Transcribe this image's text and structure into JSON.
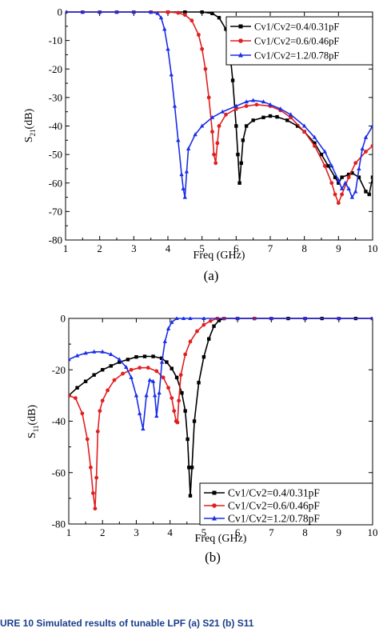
{
  "caption": "URE 10  Simulated results of tunable LPF (a) S21 (b) S11",
  "chart_data": [
    {
      "type": "line",
      "panel_label": "(a)",
      "xlabel": "Freq (GHz)",
      "ylabel_base": "S",
      "ylabel_sub": "21",
      "ylabel_unit": "(dB)",
      "xlim": [
        1,
        10
      ],
      "ylim": [
        -80,
        0
      ],
      "xticks": [
        1,
        2,
        3,
        4,
        5,
        6,
        7,
        8,
        9,
        10
      ],
      "yticks": [
        0,
        -10,
        -20,
        -30,
        -40,
        -50,
        -60,
        -70,
        -80
      ],
      "legend_position": "top-right",
      "series": [
        {
          "name": "Cv1/Cv2=0.4/0.31pF",
          "color": "#000000",
          "marker": "square",
          "x": [
            1,
            1.5,
            2,
            2.5,
            3,
            3.5,
            4,
            4.5,
            5,
            5.3,
            5.5,
            5.7,
            5.8,
            5.9,
            6,
            6.05,
            6.1,
            6.15,
            6.2,
            6.3,
            6.5,
            6.8,
            7,
            7.2,
            7.5,
            7.8,
            8,
            8.3,
            8.5,
            8.7,
            8.9,
            9,
            9.1,
            9.3,
            9.4,
            9.6,
            9.8,
            9.9,
            10
          ],
          "y": [
            0,
            0,
            0,
            0,
            0,
            0,
            0,
            0,
            0,
            -0.5,
            -2,
            -6,
            -12,
            -24,
            -40,
            -50,
            -60,
            -53,
            -45,
            -40,
            -38,
            -37,
            -36.5,
            -36.8,
            -38,
            -40,
            -42,
            -46,
            -50,
            -54,
            -58,
            -60,
            -58,
            -57,
            -56.5,
            -58,
            -63,
            -64,
            -58
          ]
        },
        {
          "name": "Cv1/Cv2=0.6/0.46pF",
          "color": "#e02020",
          "marker": "circle",
          "x": [
            1,
            1.5,
            2,
            2.5,
            3,
            3.5,
            4,
            4.3,
            4.5,
            4.7,
            4.9,
            5,
            5.1,
            5.2,
            5.3,
            5.35,
            5.4,
            5.45,
            5.5,
            5.7,
            6,
            6.3,
            6.6,
            7,
            7.3,
            7.6,
            8,
            8.3,
            8.6,
            8.8,
            8.9,
            9,
            9.1,
            9.3,
            9.5,
            9.8,
            10
          ],
          "y": [
            0,
            0,
            0,
            0,
            0,
            0,
            0,
            -0.3,
            -1,
            -3,
            -8,
            -13,
            -20,
            -30,
            -42,
            -50,
            -53,
            -46,
            -40,
            -36,
            -34,
            -33,
            -32.5,
            -33,
            -34.5,
            -37,
            -42,
            -47,
            -54,
            -60,
            -64,
            -67,
            -64,
            -58,
            -53,
            -49,
            -47
          ]
        },
        {
          "name": "Cv1/Cv2=1.2/0.78pF",
          "color": "#1a2ee6",
          "marker": "triangle",
          "x": [
            1,
            1.5,
            2,
            2.5,
            3,
            3.5,
            3.7,
            3.8,
            3.9,
            4,
            4.1,
            4.2,
            4.3,
            4.4,
            4.45,
            4.5,
            4.55,
            4.6,
            4.8,
            5,
            5.3,
            5.6,
            6,
            6.3,
            6.5,
            6.8,
            7,
            7.3,
            7.6,
            8,
            8.3,
            8.6,
            8.8,
            9,
            9.1,
            9.2,
            9.3,
            9.4,
            9.5,
            9.6,
            9.7,
            9.8,
            10
          ],
          "y": [
            0,
            0,
            0,
            0,
            0,
            0,
            -0.5,
            -2,
            -6,
            -13,
            -22,
            -33,
            -45,
            -57,
            -62,
            -65,
            -56,
            -48,
            -43,
            -40,
            -37,
            -35,
            -33,
            -31.5,
            -31,
            -31.5,
            -32.5,
            -34,
            -36,
            -40,
            -44,
            -49,
            -54,
            -59,
            -62,
            -60,
            -62,
            -65,
            -63,
            -55,
            -48,
            -44,
            -40
          ]
        }
      ]
    },
    {
      "type": "line",
      "panel_label": "(b)",
      "xlabel": "Freq (GHz)",
      "ylabel_base": "S",
      "ylabel_sub": "11",
      "ylabel_unit": "(dB)",
      "xlim": [
        1,
        10
      ],
      "ylim": [
        -80,
        0
      ],
      "xticks": [
        1,
        2,
        3,
        4,
        5,
        6,
        7,
        8,
        9,
        10
      ],
      "yticks": [
        0,
        -20,
        -40,
        -60,
        -80
      ],
      "legend_position": "bottom-right",
      "series": [
        {
          "name": "Cv1/Cv2=0.4/0.31pF",
          "color": "#000000",
          "marker": "square",
          "x": [
            1,
            1.25,
            1.5,
            1.75,
            2,
            2.25,
            2.5,
            2.75,
            3,
            3.25,
            3.5,
            3.75,
            3.9,
            4.05,
            4.2,
            4.35,
            4.45,
            4.52,
            4.56,
            4.6,
            4.65,
            4.72,
            4.85,
            5,
            5.15,
            5.3,
            5.45,
            5.6,
            6,
            6.5,
            7,
            7.5,
            8,
            8.5,
            9,
            9.5,
            10
          ],
          "y": [
            -30,
            -27,
            -24.5,
            -22,
            -20,
            -18.5,
            -17,
            -16,
            -15,
            -14.8,
            -14.8,
            -15.5,
            -17,
            -19.5,
            -23,
            -29,
            -36,
            -47,
            -58,
            -69,
            -58,
            -40,
            -25,
            -15,
            -8,
            -3,
            -0.8,
            0,
            0,
            0,
            0,
            0,
            0,
            0,
            0,
            0,
            0
          ]
        },
        {
          "name": "Cv1/Cv2=0.6/0.46pF",
          "color": "#e02020",
          "marker": "circle",
          "x": [
            1,
            1.2,
            1.4,
            1.55,
            1.65,
            1.72,
            1.78,
            1.82,
            1.86,
            1.92,
            2,
            2.15,
            2.35,
            2.6,
            2.85,
            3.1,
            3.35,
            3.6,
            3.8,
            3.95,
            4.05,
            4.12,
            4.18,
            4.22,
            4.26,
            4.32,
            4.45,
            4.6,
            4.8,
            5,
            5.2,
            5.4,
            5.6,
            6,
            6.5,
            7,
            8,
            9,
            10
          ],
          "y": [
            -30,
            -31,
            -37,
            -47,
            -58,
            -68,
            -74,
            -62,
            -44,
            -36,
            -32,
            -28,
            -24,
            -21.5,
            -20,
            -19.2,
            -19.2,
            -20.5,
            -23,
            -27,
            -31,
            -36,
            -40,
            -40.5,
            -32,
            -22,
            -14,
            -9,
            -5,
            -2.5,
            -1,
            0,
            0,
            0,
            0,
            0,
            0,
            0,
            0
          ]
        },
        {
          "name": "Cv1/Cv2=1.2/0.78pF",
          "color": "#1a2ee6",
          "marker": "triangle",
          "x": [
            1,
            1.25,
            1.5,
            1.75,
            2,
            2.25,
            2.5,
            2.7,
            2.85,
            3,
            3.1,
            3.2,
            3.3,
            3.4,
            3.5,
            3.55,
            3.6,
            3.68,
            3.76,
            3.85,
            3.95,
            4.05,
            4.2,
            4.4,
            4.6,
            5,
            6,
            7,
            8,
            9,
            10
          ],
          "y": [
            -16,
            -14.5,
            -13.5,
            -13,
            -13,
            -14,
            -16,
            -19,
            -23,
            -30,
            -37,
            -43,
            -30,
            -24,
            -24.5,
            -30,
            -38,
            -29,
            -17,
            -9,
            -4,
            -1.5,
            0,
            0,
            0,
            0,
            0,
            0,
            0,
            0,
            0
          ]
        }
      ]
    }
  ]
}
